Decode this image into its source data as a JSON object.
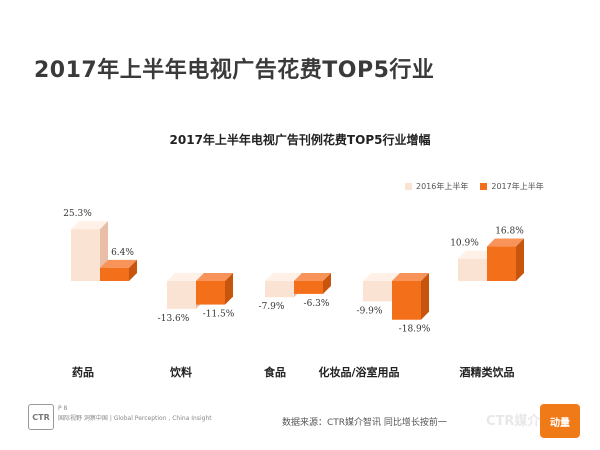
{
  "page": {
    "title": "2017年上半年电视广告花费TOP5行业",
    "footer": {
      "meta_line1": "P 8",
      "meta_line2": "国际视野 洞察中国 | Global Perception , China Insight",
      "logo_text": "CTR",
      "source": "数据来源：CTR媒介智讯   同比增长按前一",
      "watermark": "CTR媒介动量",
      "badge": "动量"
    }
  },
  "colors": {
    "series_2016": "#fbe3d3",
    "series_2016_side": "#e8bfa6",
    "series_2016_top": "#fff1e8",
    "series_2017": "#f36f1a",
    "series_2017_side": "#c8550e",
    "series_2017_top": "#f8935a"
  },
  "chart_data": {
    "type": "bar",
    "title": "2017年上半年电视广告刊例花费TOP5行业增幅",
    "categories": [
      "药品",
      "饮料",
      "食品",
      "化妆品/浴室用品",
      "酒精类饮品"
    ],
    "series": [
      {
        "name": "2016年上半年",
        "values": [
          25.3,
          -13.6,
          -7.9,
          -9.9,
          10.9
        ],
        "labels": [
          "25.3%",
          "-13.6%",
          "-7.9%",
          "-9.9%",
          "10.9%"
        ]
      },
      {
        "name": "2017年上半年",
        "values": [
          6.4,
          -11.5,
          -6.3,
          -18.9,
          16.8
        ],
        "labels": [
          "6.4%",
          "-11.5%",
          "-6.3%",
          "-18.9%",
          "16.8%"
        ]
      }
    ],
    "legend_position": "top-right",
    "grid": false
  }
}
